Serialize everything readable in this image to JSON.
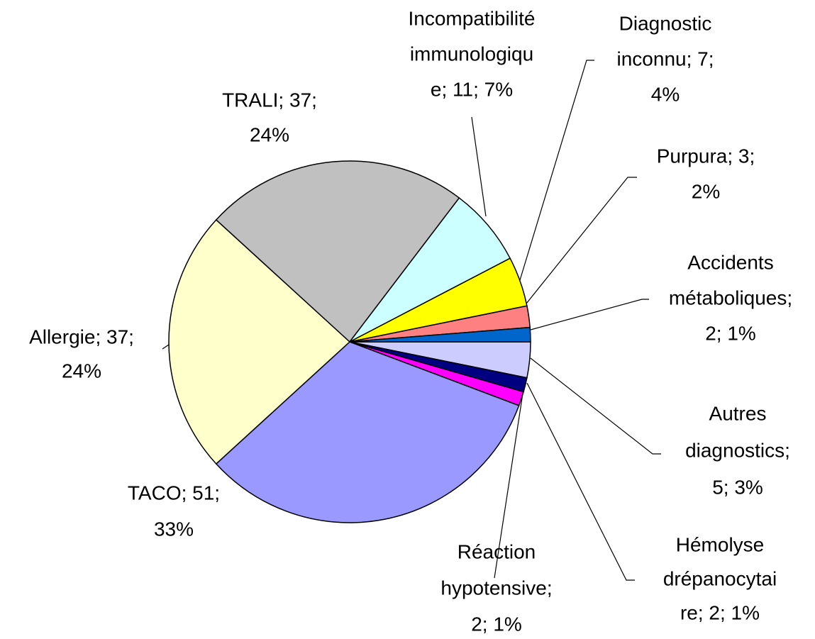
{
  "chart_data": {
    "type": "pie",
    "labels": [
      [
        "Autres",
        "diagnostics;",
        "5; 3%"
      ],
      [
        "Hémolyse",
        "drépanocytai",
        "re; 2; 1%"
      ],
      [
        "Réaction",
        "hypotensive;",
        "2; 1%"
      ],
      [
        "TACO; 51;",
        "33%"
      ],
      [
        "Allergie; 37;",
        "24%"
      ],
      [
        "TRALI; 37;",
        "24%"
      ],
      [
        "Incompatibilité",
        "immunologiqu",
        "e; 11; 7%"
      ],
      [
        "Diagnostic",
        "inconnu; 7;",
        "4%"
      ],
      [
        "Purpura; 3;",
        "2%"
      ],
      [
        "Accidents",
        "métaboliques;",
        "2; 1%"
      ]
    ],
    "values": [
      5,
      2,
      2,
      51,
      37,
      37,
      11,
      7,
      3,
      2
    ],
    "colors": [
      "#ccccff",
      "#000080",
      "#ff00ff",
      "#9999ff",
      "#ffffcc",
      "#c0c0c0",
      "#ccffff",
      "#ffff00",
      "#ff8080",
      "#0066cc"
    ]
  }
}
